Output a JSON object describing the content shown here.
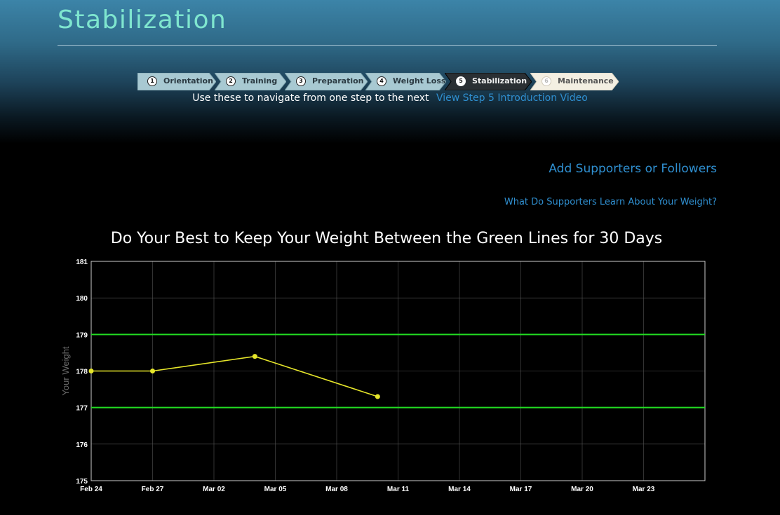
{
  "page": {
    "title": "Stabilization"
  },
  "steps": [
    {
      "num": "1",
      "label": "Orientation",
      "state": "done"
    },
    {
      "num": "2",
      "label": "Training",
      "state": "done"
    },
    {
      "num": "3",
      "label": "Preparation",
      "state": "done"
    },
    {
      "num": "4",
      "label": "Weight Loss",
      "state": "done"
    },
    {
      "num": "5",
      "label": "Stabilization",
      "state": "current"
    },
    {
      "num": "6",
      "label": "Maintenance",
      "state": "future"
    }
  ],
  "nav": {
    "hint": "Use these to navigate from one step to the next",
    "video_link": "View Step 5 Introduction Video"
  },
  "links": {
    "add_supporters": "Add Supporters or Followers",
    "learn": "What Do Supporters Learn About Your Weight?"
  },
  "colors": {
    "accent_title": "#7fe6cf",
    "link": "#2f8fd0",
    "band_lines": "#22dd22",
    "series": "#e6e62a"
  },
  "chart_data": {
    "type": "line",
    "title": "Do Your Best to Keep Your Weight Between the Green Lines for 30 Days",
    "ylabel": "Your Weight",
    "xlabel": "",
    "ylim": [
      175,
      181
    ],
    "yticks": [
      175,
      176,
      177,
      178,
      179,
      180,
      181
    ],
    "xlim": [
      "Feb 24",
      "Mar 26"
    ],
    "xtick_labels": [
      "Feb 24",
      "Feb 27",
      "Mar 02",
      "Mar 05",
      "Mar 08",
      "Mar 11",
      "Mar 14",
      "Mar 17",
      "Mar 20",
      "Mar 23"
    ],
    "grid": true,
    "bands": [
      179,
      177
    ],
    "series": [
      {
        "x": [
          "Feb 24",
          "Feb 27",
          "Mar 04",
          "Mar 10"
        ],
        "values": [
          178.0,
          178.0,
          178.4,
          177.3
        ]
      }
    ]
  }
}
